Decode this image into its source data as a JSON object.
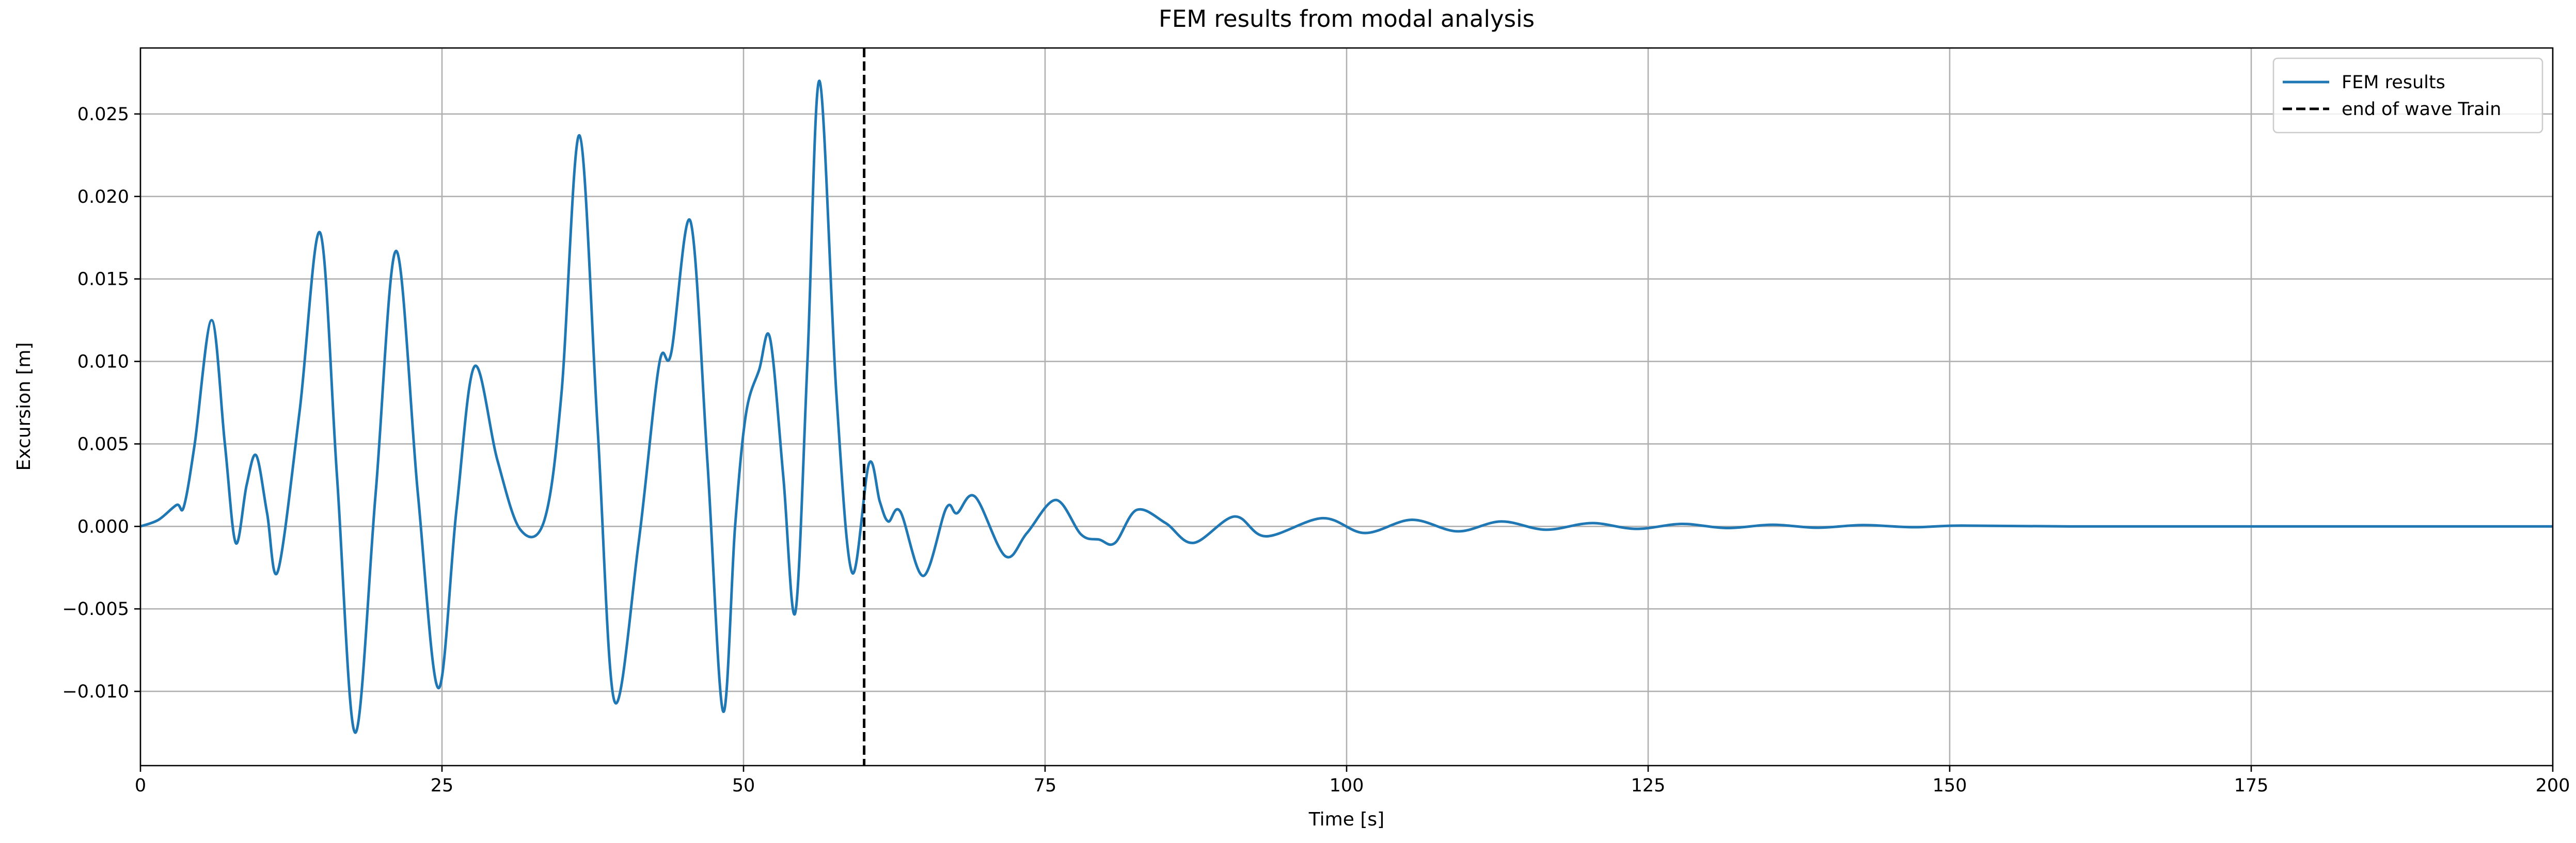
{
  "chart_data": {
    "type": "line",
    "title": "FEM results from modal analysis",
    "xlabel": "Time [s]",
    "ylabel": "Excursion [m]",
    "xlim": [
      0,
      200
    ],
    "ylim": [
      -0.0145,
      0.029
    ],
    "xticks": [
      0,
      25,
      50,
      75,
      100,
      125,
      150,
      175,
      200
    ],
    "yticks": [
      {
        "value": -0.01,
        "label": "−0.010"
      },
      {
        "value": -0.005,
        "label": "−0.005"
      },
      {
        "value": 0,
        "label": "0.000"
      },
      {
        "value": 0.005,
        "label": "0.005"
      },
      {
        "value": 0.01,
        "label": "0.010"
      },
      {
        "value": 0.015,
        "label": "0.015"
      },
      {
        "value": 0.02,
        "label": "0.020"
      },
      {
        "value": 0.025,
        "label": "0.025"
      }
    ],
    "grid": true,
    "legend": "upper right",
    "series": [
      {
        "name": "FEM results",
        "color": "#1f77b4",
        "x": [
          0,
          1.5,
          3,
          3.6,
          4.5,
          5.9,
          7.0,
          7.9,
          8.8,
          9.6,
          10.5,
          11.4,
          13.2,
          14.9,
          16.3,
          17.8,
          19.5,
          21.2,
          23.0,
          24.7,
          26.2,
          27.7,
          29.6,
          31.5,
          33.5,
          34.9,
          36.4,
          37.9,
          39.3,
          41.3,
          43.0,
          44.0,
          45.6,
          47.0,
          48.3,
          49.3,
          50.2,
          51.3,
          52.2,
          53.3,
          54.3,
          55.3,
          56.3,
          57.7,
          59.0,
          60.4,
          61.3,
          62.0,
          63.0,
          64.9,
          66.8,
          67.7,
          69.2,
          71.7,
          73.5,
          75.9,
          78.0,
          79.5,
          80.8,
          82.6,
          85.0,
          87.3,
          90.7,
          93.3,
          98.0,
          101.5,
          105.4,
          109.2,
          112.8,
          116.5,
          120.3,
          124.0,
          127.8,
          131.5,
          135.3,
          139.0,
          142.8,
          147,
          151,
          160,
          170,
          180,
          190,
          200
        ],
        "values": [
          0,
          0.0004,
          0.0013,
          0.0012,
          0.005,
          0.0125,
          0.005,
          -0.001,
          0.0025,
          0.0043,
          0.0008,
          -0.0027,
          0.007,
          0.0178,
          0.003,
          -0.0125,
          0.002,
          0.0167,
          0.002,
          -0.0098,
          0.001,
          0.0097,
          0.004,
          -0.0002,
          0.0004,
          0.008,
          0.0237,
          0.006,
          -0.0106,
          -0.001,
          0.0098,
          0.0105,
          0.0185,
          0.004,
          -0.0112,
          0.0,
          0.0068,
          0.0095,
          0.0114,
          0.003,
          -0.0052,
          0.01,
          0.027,
          0.008,
          -0.0028,
          0.0038,
          0.0015,
          0.0003,
          0.0009,
          -0.003,
          0.0011,
          0.0008,
          0.0018,
          -0.0018,
          -0.0004,
          0.0016,
          -0.0005,
          -0.0008,
          -0.001,
          0.001,
          0.0002,
          -0.001,
          0.0006,
          -0.0006,
          0.0005,
          -0.0004,
          0.0004,
          -0.0003,
          0.0003,
          -0.0002,
          0.0002,
          -0.00015,
          0.00015,
          -0.0001,
          0.0001,
          -8e-05,
          8e-05,
          -5e-05,
          5e-05,
          0,
          0,
          0,
          0,
          0
        ]
      }
    ],
    "vline": {
      "name": "end of wave Train",
      "x": 60,
      "color": "#000000"
    }
  }
}
